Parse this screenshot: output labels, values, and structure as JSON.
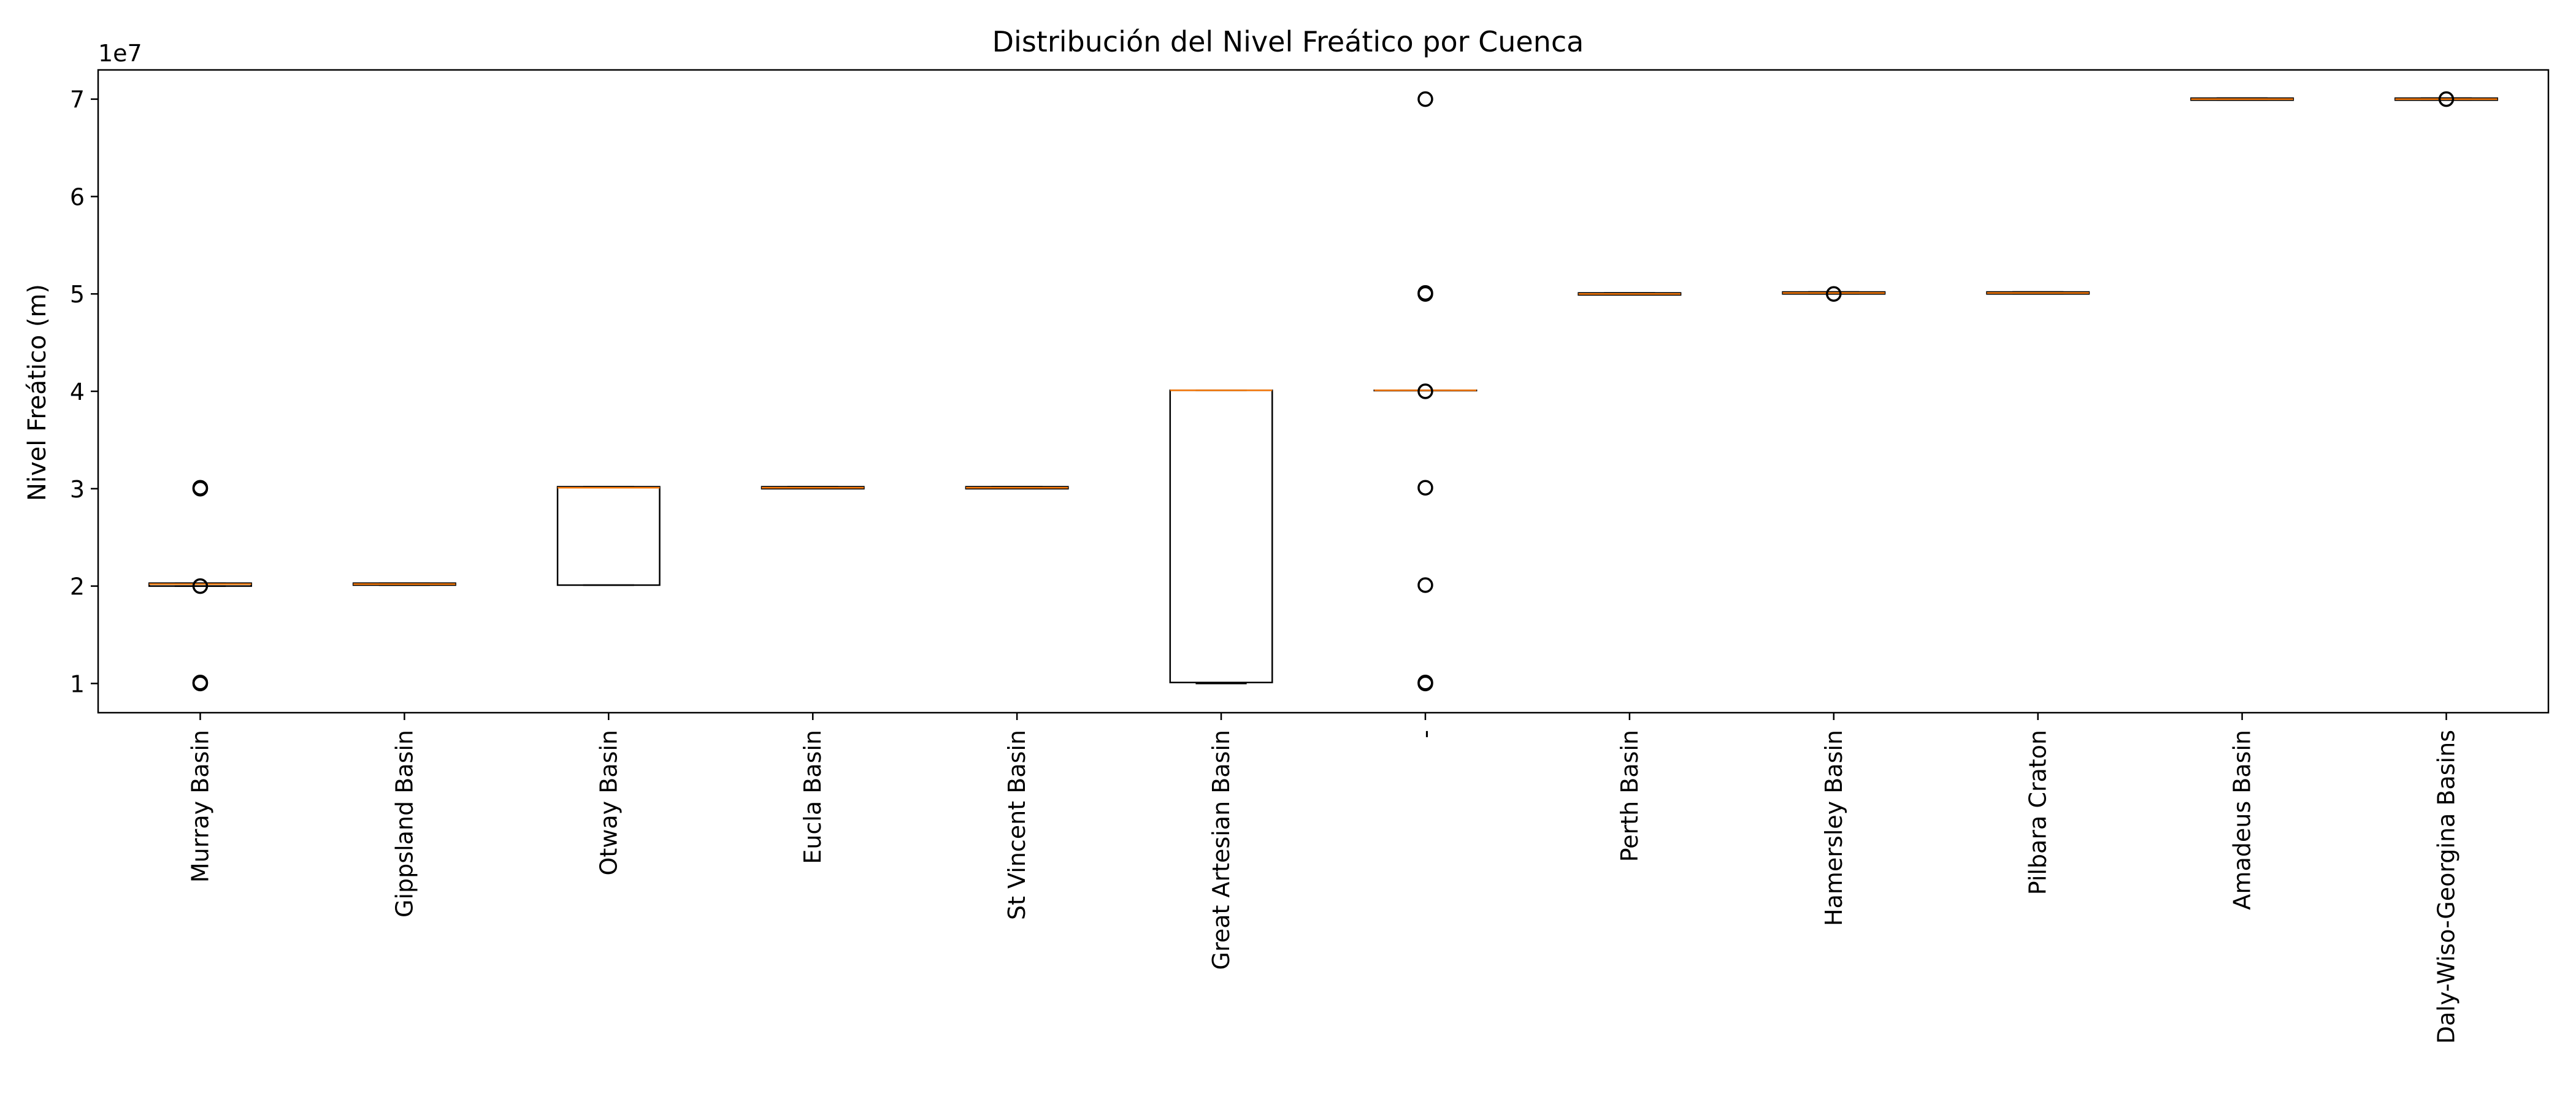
{
  "chart_data": {
    "type": "boxplot",
    "title": "Distribución del Nivel Freático por Cuenca",
    "xlabel": "",
    "ylabel": "Nivel Freático (m)",
    "y_offset_label": "1e7",
    "ylim": [
      7000000,
      73000000
    ],
    "yticks": [
      10000000,
      20000000,
      30000000,
      40000000,
      50000000,
      60000000,
      70000000
    ],
    "ytick_labels": [
      "1",
      "2",
      "3",
      "4",
      "5",
      "6",
      "7"
    ],
    "grid": false,
    "colors": {
      "box": "#000000",
      "median": "#ff7f0e",
      "flier": "#000000"
    },
    "categories": [
      "Murray Basin",
      "Gippsland Basin",
      "Otway Basin",
      "Eucla Basin",
      "St Vincent Basin",
      "Great Artesian Basin",
      "-",
      "Perth Basin",
      "Hamersley Basin",
      "Pilbara Craton",
      "Amadeus Basin",
      "Daly-Wiso-Georgina Basins"
    ],
    "boxes": [
      {
        "q1": 20000000,
        "median": 20200000,
        "q3": 20300000,
        "whislo": 20000000,
        "whishi": 20300000,
        "fliers": [
          10000000,
          10100000,
          20000000,
          30000000,
          30100000
        ]
      },
      {
        "q1": 20100000,
        "median": 20200000,
        "q3": 20300000,
        "whislo": 20100000,
        "whishi": 20300000,
        "fliers": []
      },
      {
        "q1": 20100000,
        "median": 30100000,
        "q3": 30200000,
        "whislo": 20100000,
        "whishi": 30200000,
        "fliers": []
      },
      {
        "q1": 30000000,
        "median": 30100000,
        "q3": 30200000,
        "whislo": 30000000,
        "whishi": 30200000,
        "fliers": []
      },
      {
        "q1": 30000000,
        "median": 30100000,
        "q3": 30200000,
        "whislo": 30000000,
        "whishi": 30200000,
        "fliers": []
      },
      {
        "q1": 10100000,
        "median": 40100000,
        "q3": 40100000,
        "whislo": 10000000,
        "whishi": 40100000,
        "fliers": []
      },
      {
        "q1": 40100000,
        "median": 40100000,
        "q3": 40100000,
        "whislo": 40100000,
        "whishi": 40100000,
        "fliers": [
          10000000,
          10100000,
          20100000,
          30100000,
          40000000,
          50000000,
          50100000,
          70000000
        ]
      },
      {
        "q1": 49900000,
        "median": 50000000,
        "q3": 50100000,
        "whislo": 49900000,
        "whishi": 50100000,
        "fliers": []
      },
      {
        "q1": 50000000,
        "median": 50100000,
        "q3": 50200000,
        "whislo": 50000000,
        "whishi": 50200000,
        "fliers": [
          50000000
        ]
      },
      {
        "q1": 50000000,
        "median": 50100000,
        "q3": 50200000,
        "whislo": 50000000,
        "whishi": 50200000,
        "fliers": []
      },
      {
        "q1": 69900000,
        "median": 70000000,
        "q3": 70100000,
        "whislo": 69900000,
        "whishi": 70100000,
        "fliers": []
      },
      {
        "q1": 69900000,
        "median": 70000000,
        "q3": 70100000,
        "whislo": 69900000,
        "whishi": 70100000,
        "fliers": [
          70000000
        ]
      }
    ]
  }
}
